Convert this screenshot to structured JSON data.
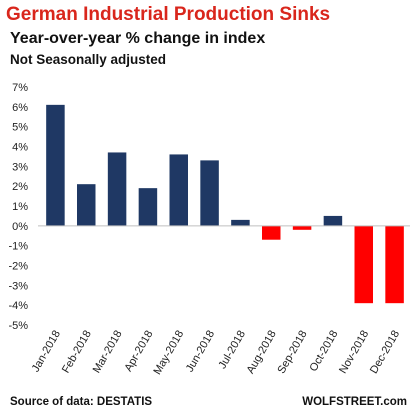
{
  "chart_data": {
    "type": "bar",
    "title": "German Industrial Production Sinks",
    "subtitle": "Year-over-year % change in index",
    "subtitle2": "Not Seasonally adjusted",
    "categories": [
      "Jan-2018",
      "Feb-2018",
      "Mar-2018",
      "Apr-2018",
      "May-2018",
      "Jun-2018",
      "Jul-2018",
      "Aug-2018",
      "Sep-2018",
      "Oct-2018",
      "Nov-2018",
      "Dec-2018"
    ],
    "values": [
      6.1,
      2.1,
      3.7,
      1.9,
      3.6,
      3.3,
      0.3,
      -0.7,
      -0.2,
      0.5,
      -3.9,
      -3.9
    ],
    "ylim": [
      -5,
      7
    ],
    "yticks": [
      "7%",
      "6%",
      "5%",
      "4%",
      "3%",
      "2%",
      "1%",
      "0%",
      "-1%",
      "-2%",
      "-3%",
      "-4%",
      "-5%"
    ],
    "ytick_values": [
      7,
      6,
      5,
      4,
      3,
      2,
      1,
      0,
      -1,
      -2,
      -3,
      -4,
      -5
    ],
    "grid": false,
    "colors": {
      "positive": "#1f3864",
      "negative": "#ff0000",
      "axis": "#bfbfbf"
    }
  },
  "footer": {
    "source": "Source of data: DESTATIS",
    "brand": "WOLFSTREET.com"
  }
}
